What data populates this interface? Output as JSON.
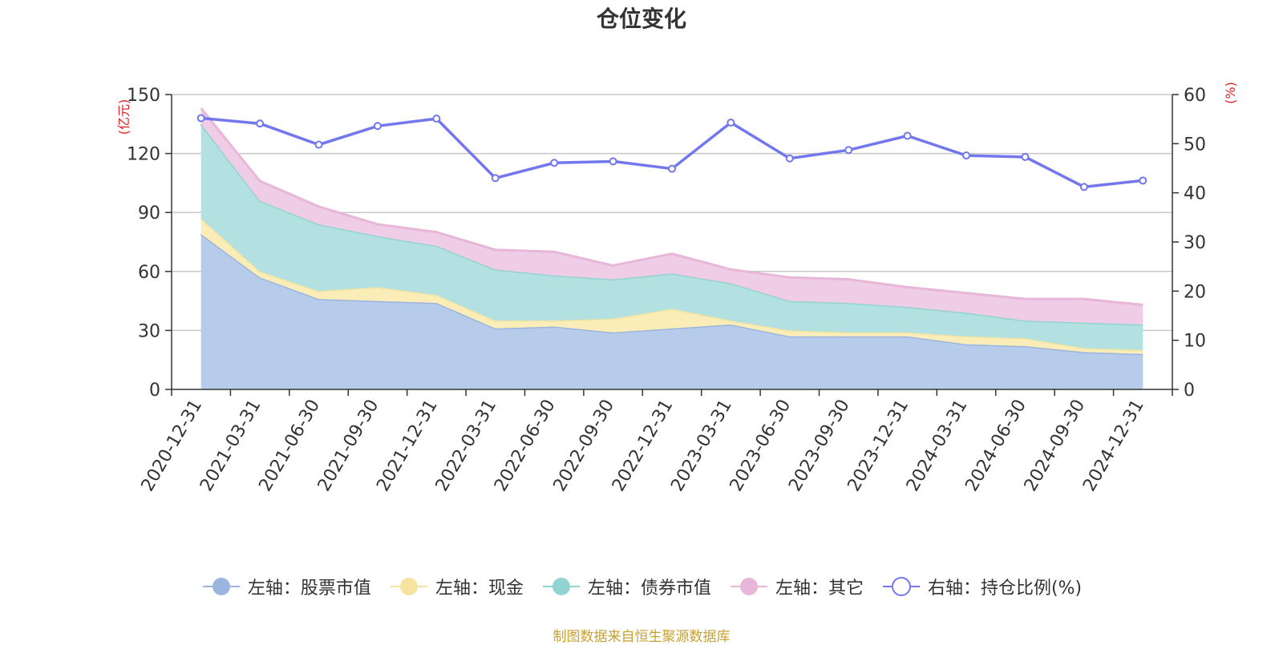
{
  "chart_data": {
    "type": "area",
    "title": "仓位变化",
    "categories": [
      "2020-12-31",
      "2021-03-31",
      "2021-06-30",
      "2021-09-30",
      "2021-12-31",
      "2022-03-31",
      "2022-06-30",
      "2022-09-30",
      "2022-12-31",
      "2023-03-31",
      "2023-06-30",
      "2023-09-30",
      "2023-12-31",
      "2024-03-31",
      "2024-06-30",
      "2024-09-30",
      "2024-12-31"
    ],
    "y_left": {
      "label": "(亿元)",
      "ylim": [
        0,
        150
      ],
      "ticks": [
        0,
        30,
        60,
        90,
        120,
        150
      ]
    },
    "y_right": {
      "label": "(%)",
      "ylim": [
        0,
        60
      ],
      "ticks": [
        0,
        10,
        20,
        30,
        40,
        50,
        60
      ]
    },
    "grid": true,
    "legend_position": "bottom",
    "series": [
      {
        "name": "左轴：股票市值",
        "axis": "left",
        "type": "area",
        "stacked": true,
        "color": "#9bb5df",
        "fill": "#b7cceb",
        "values": [
          79,
          57,
          46,
          45,
          44,
          31,
          32,
          29,
          31,
          33,
          27,
          27,
          27,
          23,
          22,
          19,
          18
        ]
      },
      {
        "name": "左轴：现金",
        "axis": "left",
        "type": "area",
        "stacked": true,
        "color": "#f5e4a0",
        "fill": "#faedb8",
        "values": [
          8,
          3,
          4,
          7,
          4,
          4,
          3,
          7,
          10,
          2,
          3,
          2,
          2,
          4,
          4,
          2,
          2
        ]
      },
      {
        "name": "左轴：债券市值",
        "axis": "left",
        "type": "area",
        "stacked": true,
        "color": "#92d3d3",
        "fill": "#b3e0e0",
        "values": [
          48,
          36,
          34,
          26,
          25,
          26,
          23,
          20,
          18,
          19,
          15,
          15,
          13,
          12,
          9,
          13,
          13
        ]
      },
      {
        "name": "左轴：其它",
        "axis": "left",
        "type": "area",
        "stacked": true,
        "color": "#e7b6d8",
        "fill": "#f0cde6",
        "values": [
          8,
          10,
          9,
          6,
          7,
          10,
          12,
          7,
          10,
          7,
          12,
          12,
          10,
          10,
          11,
          12,
          10
        ]
      },
      {
        "name": "右轴：持仓比例(%)",
        "axis": "right",
        "type": "line",
        "color": "#7377ee",
        "values": [
          55.2,
          54.1,
          49.8,
          53.6,
          55.1,
          43.0,
          46.1,
          46.4,
          44.9,
          54.3,
          47.0,
          48.7,
          51.6,
          47.6,
          47.3,
          41.2,
          42.5
        ]
      }
    ],
    "source_note": "制图数据来自恒生聚源数据库"
  }
}
